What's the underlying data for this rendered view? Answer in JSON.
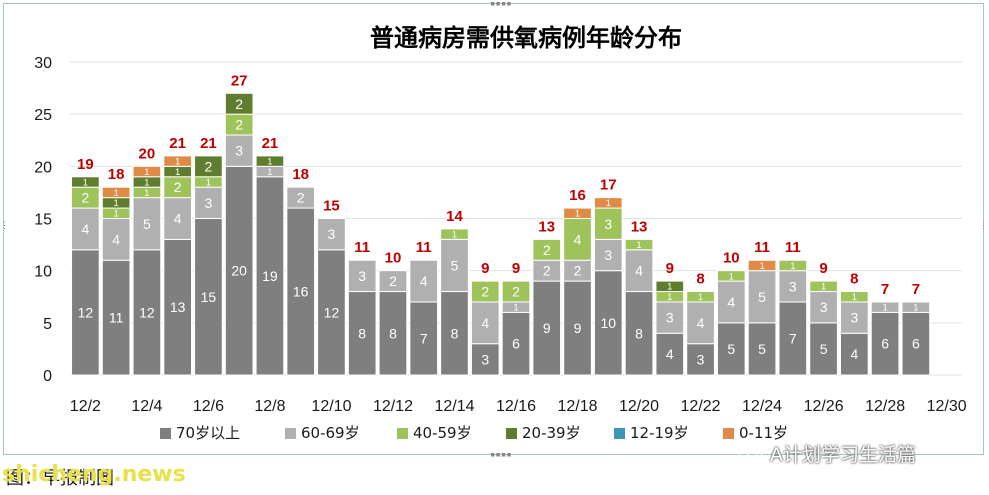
{
  "chart_data": {
    "type": "bar",
    "stacked": true,
    "title": "普通病房需供氧病例年龄分布",
    "categories": [
      "12/2",
      "12/3",
      "12/4",
      "12/5",
      "12/6",
      "12/7",
      "12/8",
      "12/9",
      "12/10",
      "12/11",
      "12/12",
      "12/13",
      "12/14",
      "12/15",
      "12/16",
      "12/17",
      "12/18",
      "12/19",
      "12/20",
      "12/21",
      "12/22",
      "12/23",
      "12/24",
      "12/25",
      "12/26",
      "12/27",
      "12/28",
      "12/29"
    ],
    "x_tick_labels": [
      "12/2",
      "12/4",
      "12/6",
      "12/8",
      "12/10",
      "12/12",
      "12/14",
      "12/16",
      "12/18",
      "12/20",
      "12/22",
      "12/24",
      "12/26",
      "12/28",
      "12/30"
    ],
    "ylim": [
      0,
      30
    ],
    "y_ticks": [
      0,
      5,
      10,
      15,
      20,
      25,
      30
    ],
    "grid": true,
    "legend_position": "bottom",
    "totals": [
      19,
      18,
      20,
      21,
      21,
      27,
      21,
      18,
      15,
      11,
      10,
      11,
      14,
      9,
      9,
      13,
      16,
      17,
      13,
      9,
      8,
      10,
      11,
      11,
      9,
      8,
      7,
      7
    ],
    "series": [
      {
        "name": "70岁以上",
        "color": "#7f7f7f",
        "values": [
          12,
          11,
          12,
          13,
          15,
          20,
          19,
          16,
          12,
          8,
          8,
          7,
          8,
          3,
          6,
          9,
          9,
          10,
          8,
          4,
          3,
          5,
          5,
          7,
          5,
          4,
          6,
          6
        ]
      },
      {
        "name": "60-69岁",
        "color": "#b0b0b0",
        "values": [
          4,
          4,
          5,
          4,
          3,
          3,
          1,
          2,
          3,
          3,
          2,
          4,
          5,
          4,
          1,
          2,
          2,
          3,
          4,
          3,
          4,
          4,
          5,
          3,
          3,
          3,
          1,
          1
        ]
      },
      {
        "name": "40-59岁",
        "color": "#9dc35a",
        "values": [
          2,
          1,
          1,
          2,
          1,
          2,
          0,
          0,
          0,
          0,
          0,
          0,
          1,
          2,
          2,
          2,
          4,
          3,
          1,
          1,
          1,
          1,
          0,
          1,
          1,
          1,
          0,
          0
        ]
      },
      {
        "name": "20-39岁",
        "color": "#5f7d2e",
        "values": [
          1,
          1,
          1,
          1,
          2,
          2,
          1,
          0,
          0,
          0,
          0,
          0,
          0,
          0,
          0,
          0,
          0,
          0,
          0,
          1,
          0,
          0,
          0,
          0,
          0,
          0,
          0,
          0
        ]
      },
      {
        "name": "12-19岁",
        "color": "#3b97b5",
        "values": [
          0,
          0,
          0,
          0,
          0,
          0,
          0,
          0,
          0,
          0,
          0,
          0,
          0,
          0,
          0,
          0,
          0,
          0,
          0,
          0,
          0,
          0,
          0,
          0,
          0,
          0,
          0,
          0
        ]
      },
      {
        "name": "0-11岁",
        "color": "#e08a48",
        "values": [
          0,
          1,
          1,
          1,
          0,
          0,
          0,
          0,
          0,
          0,
          0,
          0,
          0,
          0,
          0,
          0,
          1,
          1,
          0,
          0,
          0,
          0,
          1,
          0,
          0,
          0,
          0,
          0
        ]
      }
    ]
  },
  "caption": "图：早报制图",
  "watermark": "shicheng.news",
  "brand": "A计划学习生活篇",
  "colors": {
    "total_label": "#c00000",
    "grid": "#e3e3e3",
    "axis_text": "#1a1a1a"
  }
}
